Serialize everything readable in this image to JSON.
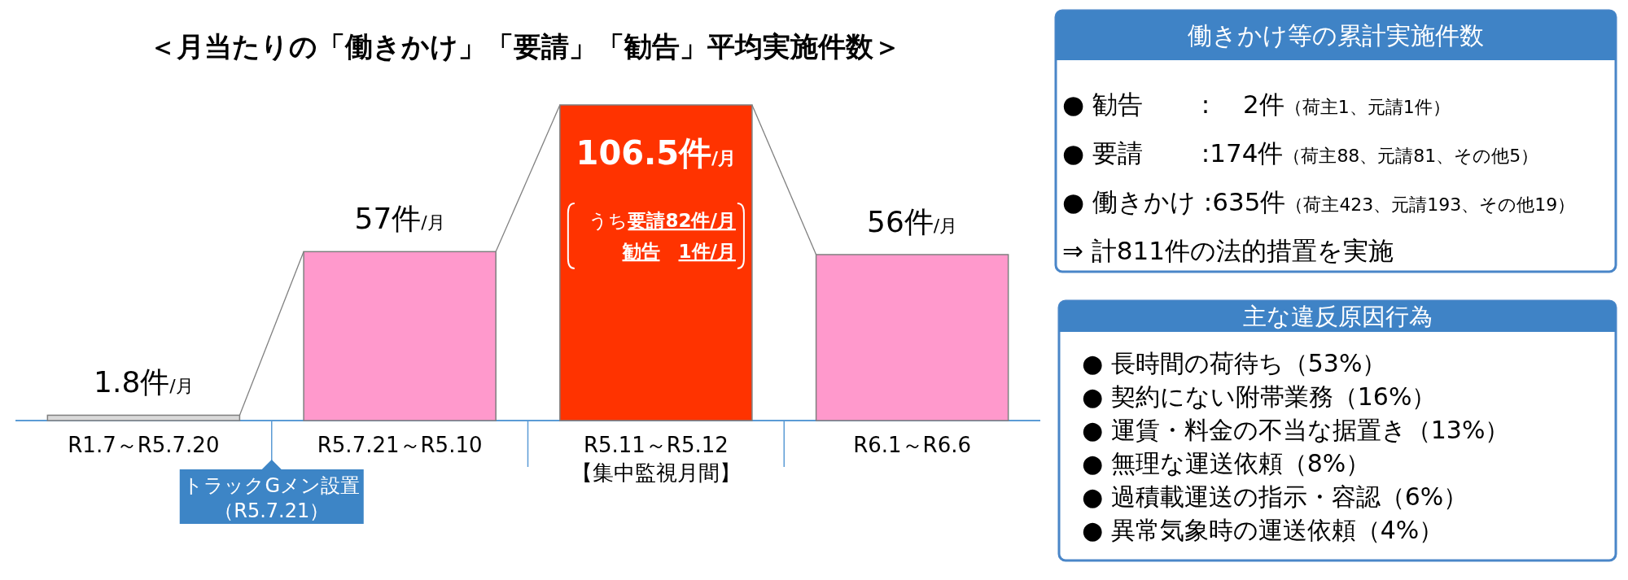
{
  "chart_data": [
    {
      "type": "bar",
      "title": "＜月当たりの「働きかけ」「要請」「勧告」平均実施件数＞",
      "categories": [
        "R1.7～R5.7.20",
        "R5.7.21～R5.10",
        "R5.11～R5.12\n【集中監視月間】",
        "R6.1～R6.6"
      ],
      "values": [
        1.8,
        57,
        106.5,
        56
      ],
      "colors": [
        "#d9d9d9",
        "#ff99cc",
        "#ff3300",
        "#ff99cc"
      ],
      "value_labels": [
        "1.8件/月",
        "57件/月",
        "106.5件/月",
        "56件/月"
      ],
      "annotations": [
        "うち**要請82件/月**",
        "**勧告　1件/月**",
        "トラックGメン設置",
        "（R5.7.21）"
      ]
    },
    {
      "type": "other",
      "title": "働きかけ等の累計実施件数",
      "annotations": [
        "● 勧告　　 :　 2件（荷主1、元請1件）",
        "● 要請　　 :174件（荷主88、元請81、その他5）",
        "● 働きかけ :635件（荷主423、元請193、その他19）",
        "⇒ 計811件の法的措置を実施"
      ]
    },
    {
      "type": "other",
      "title": "主な違反原因行為",
      "annotations": [
        "● 長時間の荷待ち（53%）",
        "● 契約にない附帯業務（16%）",
        "● 運賃・料金の不当な据置き（13%）",
        "● 無理な運送依頼（8%）",
        "● 過積載運送の指示・容認（6%）",
        "● 異常気象時の運送依頼（4%）"
      ]
    }
  ]
}
